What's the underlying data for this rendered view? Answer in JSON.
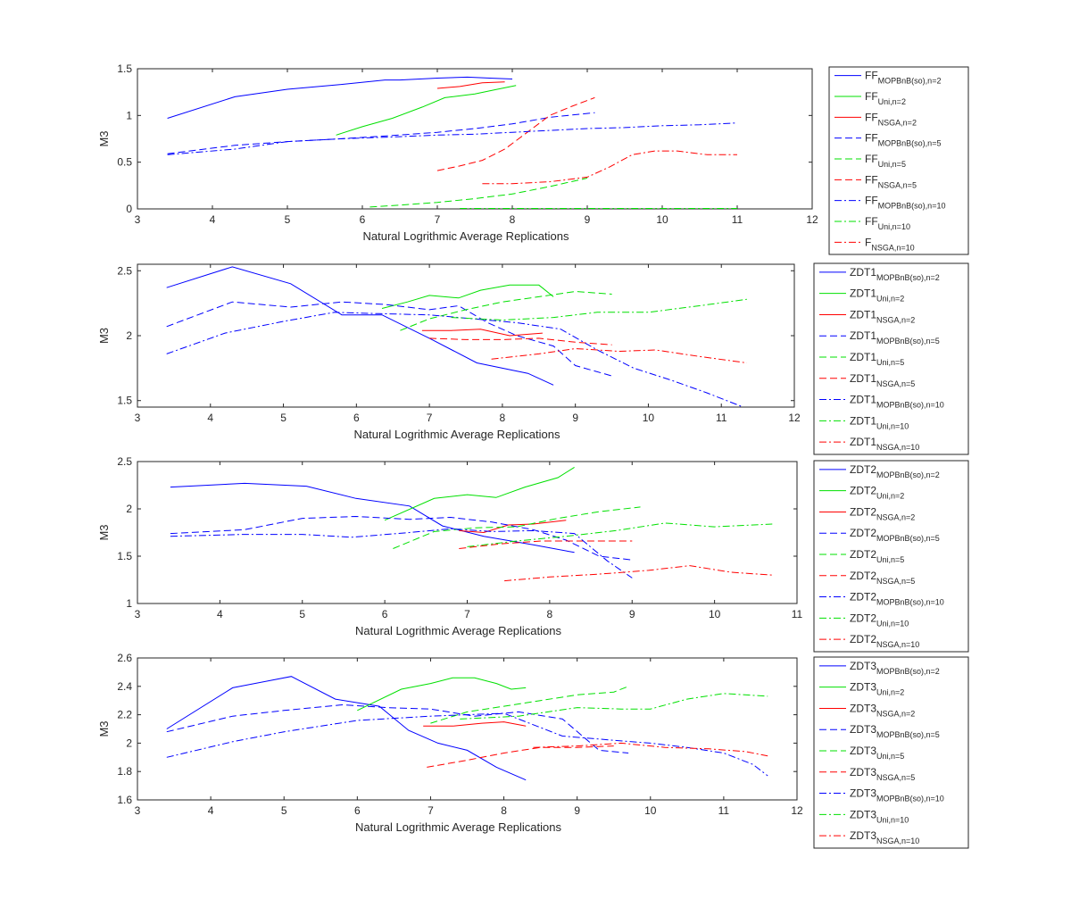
{
  "colors": {
    "blue": "#0000ff",
    "green": "#00e000",
    "red": "#ff0000",
    "axis": "#262626",
    "legend_border": "#262626"
  },
  "chart_data": [
    {
      "type": "line",
      "title": "",
      "xlabel": "Natural Logrithmic Average Replications",
      "ylabel": "M3",
      "xlim": [
        3,
        12
      ],
      "ylim": [
        0,
        1.5
      ],
      "xticks": [
        "3",
        "4",
        "5",
        "6",
        "7",
        "8",
        "9",
        "10",
        "11",
        "12"
      ],
      "yticks": [
        "0",
        "0.5",
        "1",
        "1.5"
      ],
      "legend_position": "outside-right",
      "series": [
        {
          "name": "FF",
          "sub": "MOPBnB(so),n=2",
          "color": "blue",
          "dash": "solid",
          "x": [
            3.4,
            4.3,
            5.0,
            5.7,
            6.3,
            6.5,
            7.0,
            7.4,
            7.7,
            8.0
          ],
          "y": [
            0.97,
            1.2,
            1.28,
            1.33,
            1.38,
            1.38,
            1.4,
            1.41,
            1.4,
            1.39
          ]
        },
        {
          "name": "FF",
          "sub": "Uni,n=2",
          "color": "green",
          "dash": "solid",
          "x": [
            5.65,
            6.0,
            6.4,
            6.8,
            7.1,
            7.5,
            7.8,
            8.05
          ],
          "y": [
            0.79,
            0.88,
            0.97,
            1.09,
            1.19,
            1.23,
            1.28,
            1.32
          ]
        },
        {
          "name": "FF",
          "sub": "NSGA,n=2",
          "color": "red",
          "dash": "solid",
          "x": [
            7.0,
            7.3,
            7.6,
            7.9
          ],
          "y": [
            1.29,
            1.31,
            1.35,
            1.36
          ]
        },
        {
          "name": "FF",
          "sub": "MOPBnB(so),n=5",
          "color": "blue",
          "dash": "dashed",
          "x": [
            3.4,
            4.3,
            5.0,
            5.7,
            6.3,
            7.0,
            7.5,
            8.0,
            8.5,
            9.1
          ],
          "y": [
            0.59,
            0.68,
            0.72,
            0.75,
            0.78,
            0.82,
            0.86,
            0.91,
            0.98,
            1.03
          ]
        },
        {
          "name": "FF",
          "sub": "Uni,n=5",
          "color": "green",
          "dash": "dashed",
          "x": [
            6.1,
            6.5,
            7.0,
            7.5,
            8.0,
            8.5,
            9.0
          ],
          "y": [
            0.02,
            0.04,
            0.07,
            0.11,
            0.16,
            0.24,
            0.33
          ]
        },
        {
          "name": "FF",
          "sub": "NSGA,n=5",
          "color": "red",
          "dash": "dashed",
          "x": [
            7.0,
            7.3,
            7.6,
            7.9,
            8.2,
            8.5,
            8.8,
            9.1
          ],
          "y": [
            0.41,
            0.46,
            0.52,
            0.64,
            0.82,
            1.0,
            1.1,
            1.19
          ]
        },
        {
          "name": "FF",
          "sub": "MOPBnB(so),n=10",
          "color": "blue",
          "dash": "dashdot",
          "x": [
            3.4,
            4.3,
            5.0,
            5.7,
            6.4,
            7.0,
            7.5,
            8.0,
            8.5,
            9.0,
            9.5,
            10.0,
            10.5,
            11.0
          ],
          "y": [
            0.58,
            0.64,
            0.72,
            0.75,
            0.77,
            0.79,
            0.8,
            0.82,
            0.84,
            0.86,
            0.87,
            0.89,
            0.9,
            0.92
          ]
        },
        {
          "name": "FF",
          "sub": "Uni,n=10",
          "color": "green",
          "dash": "dashdot",
          "x": [
            7.3,
            8.0,
            9.0,
            10.0,
            11.0
          ],
          "y": [
            0.005,
            0.005,
            0.005,
            0.005,
            0.005
          ]
        },
        {
          "name": "F",
          "sub": "NSGA,n=10",
          "color": "red",
          "dash": "dashdot",
          "x": [
            7.6,
            8.0,
            8.5,
            9.0,
            9.3,
            9.6,
            9.9,
            10.2,
            10.6,
            11.0
          ],
          "y": [
            0.27,
            0.27,
            0.29,
            0.34,
            0.45,
            0.58,
            0.62,
            0.62,
            0.58,
            0.58
          ]
        }
      ]
    },
    {
      "type": "line",
      "title": "",
      "xlabel": "Natural Logrithmic Average Replications",
      "ylabel": "M3",
      "xlim": [
        3,
        12
      ],
      "ylim": [
        1.45,
        2.55
      ],
      "xticks": [
        "3",
        "4",
        "5",
        "6",
        "7",
        "8",
        "9",
        "10",
        "11",
        "12"
      ],
      "yticks": [
        "1.5",
        "2",
        "2.5"
      ],
      "legend_position": "outside-right",
      "series": [
        {
          "name": "ZDT1",
          "sub": "MOPBnB(so),n=2",
          "color": "blue",
          "dash": "solid",
          "x": [
            3.4,
            4.3,
            5.1,
            5.8,
            6.35,
            7.0,
            7.65,
            8.35,
            8.7
          ],
          "y": [
            2.37,
            2.53,
            2.4,
            2.16,
            2.16,
            1.98,
            1.79,
            1.71,
            1.62
          ]
        },
        {
          "name": "ZDT1",
          "sub": "Uni,n=2",
          "color": "green",
          "dash": "solid",
          "x": [
            6.35,
            6.7,
            7.0,
            7.4,
            7.7,
            8.1,
            8.5,
            8.7
          ],
          "y": [
            2.21,
            2.26,
            2.31,
            2.29,
            2.35,
            2.39,
            2.39,
            2.3
          ]
        },
        {
          "name": "ZDT1",
          "sub": "NSGA,n=2",
          "color": "red",
          "dash": "solid",
          "x": [
            6.9,
            7.3,
            7.7,
            8.1,
            8.55
          ],
          "y": [
            2.04,
            2.04,
            2.05,
            2.0,
            2.02
          ]
        },
        {
          "name": "ZDT1",
          "sub": "MOPBnB(so),n=5",
          "color": "blue",
          "dash": "dashed",
          "x": [
            3.4,
            4.3,
            5.1,
            5.8,
            6.4,
            7.0,
            7.4,
            7.8,
            8.2,
            8.7,
            9.0,
            9.5
          ],
          "y": [
            2.07,
            2.26,
            2.22,
            2.26,
            2.24,
            2.2,
            2.23,
            2.1,
            2.0,
            1.92,
            1.77,
            1.69
          ]
        },
        {
          "name": "ZDT1",
          "sub": "Uni,n=5",
          "color": "green",
          "dash": "dashed",
          "x": [
            6.6,
            7.0,
            7.5,
            8.0,
            8.5,
            9.0,
            9.5
          ],
          "y": [
            2.04,
            2.13,
            2.2,
            2.26,
            2.3,
            2.34,
            2.32
          ]
        },
        {
          "name": "ZDT1",
          "sub": "NSGA,n=5",
          "color": "red",
          "dash": "dashed",
          "x": [
            7.0,
            7.5,
            8.0,
            8.5,
            9.0,
            9.5
          ],
          "y": [
            1.98,
            1.97,
            1.97,
            1.98,
            1.95,
            1.93
          ]
        },
        {
          "name": "ZDT1",
          "sub": "MOPBnB(so),n=10",
          "color": "blue",
          "dash": "dashdot",
          "x": [
            3.4,
            4.2,
            5.0,
            5.7,
            6.3,
            7.0,
            7.6,
            8.2,
            8.8,
            9.3,
            9.8,
            10.3,
            10.8,
            11.3
          ],
          "y": [
            1.86,
            2.02,
            2.11,
            2.18,
            2.17,
            2.16,
            2.13,
            2.1,
            2.05,
            1.89,
            1.75,
            1.66,
            1.56,
            1.45
          ]
        },
        {
          "name": "ZDT1",
          "sub": "Uni,n=10",
          "color": "green",
          "dash": "dashdot",
          "x": [
            7.3,
            8.0,
            8.7,
            9.3,
            10.0,
            10.7,
            11.35
          ],
          "y": [
            2.14,
            2.12,
            2.14,
            2.18,
            2.18,
            2.23,
            2.28
          ]
        },
        {
          "name": "ZDT1",
          "sub": "NSGA,n=10",
          "color": "red",
          "dash": "dashdot",
          "x": [
            7.85,
            8.5,
            9.0,
            9.6,
            10.1,
            10.7,
            11.35
          ],
          "y": [
            1.82,
            1.86,
            1.9,
            1.88,
            1.89,
            1.84,
            1.79
          ]
        }
      ]
    },
    {
      "type": "line",
      "title": "",
      "xlabel": "Natural Logrithmic Average Replications",
      "ylabel": "M3",
      "xlim": [
        3,
        11
      ],
      "ylim": [
        1,
        2.5
      ],
      "xticks": [
        "3",
        "4",
        "5",
        "6",
        "7",
        "8",
        "9",
        "10",
        "11"
      ],
      "yticks": [
        "1",
        "1.5",
        "2",
        "2.5"
      ],
      "legend_position": "outside-right",
      "series": [
        {
          "name": "ZDT2",
          "sub": "MOPBnB(so),n=2",
          "color": "blue",
          "dash": "solid",
          "x": [
            3.4,
            4.3,
            5.05,
            5.65,
            6.3,
            6.7,
            7.2,
            7.8,
            8.3
          ],
          "y": [
            2.23,
            2.27,
            2.24,
            2.11,
            2.03,
            1.82,
            1.71,
            1.62,
            1.54
          ]
        },
        {
          "name": "ZDT2",
          "sub": "Uni,n=2",
          "color": "green",
          "dash": "solid",
          "x": [
            6.0,
            6.6,
            7.0,
            7.35,
            7.7,
            8.1,
            8.3
          ],
          "y": [
            1.88,
            2.11,
            2.15,
            2.12,
            2.23,
            2.33,
            2.44
          ]
        },
        {
          "name": "ZDT2",
          "sub": "NSGA,n=2",
          "color": "red",
          "dash": "solid",
          "x": [
            6.9,
            7.2,
            7.5,
            7.8,
            8.2
          ],
          "y": [
            1.77,
            1.75,
            1.83,
            1.84,
            1.88
          ]
        },
        {
          "name": "ZDT2",
          "sub": "MOPBnB(so),n=5",
          "color": "blue",
          "dash": "dashed",
          "x": [
            3.4,
            4.3,
            5.0,
            5.65,
            6.3,
            6.8,
            7.3,
            7.8,
            8.2,
            8.6,
            9.0
          ],
          "y": [
            1.74,
            1.78,
            1.9,
            1.92,
            1.89,
            1.91,
            1.86,
            1.78,
            1.67,
            1.5,
            1.46
          ]
        },
        {
          "name": "ZDT2",
          "sub": "Uni,n=5",
          "color": "green",
          "dash": "dashed",
          "x": [
            6.1,
            6.6,
            7.1,
            7.6,
            8.1,
            8.6,
            9.1
          ],
          "y": [
            1.58,
            1.76,
            1.8,
            1.81,
            1.9,
            1.97,
            2.02
          ]
        },
        {
          "name": "ZDT2",
          "sub": "NSGA,n=5",
          "color": "red",
          "dash": "dashed",
          "x": [
            6.9,
            7.4,
            7.9,
            8.4,
            9.0
          ],
          "y": [
            1.58,
            1.63,
            1.66,
            1.66,
            1.66
          ]
        },
        {
          "name": "ZDT2",
          "sub": "MOPBnB(so),n=10",
          "color": "blue",
          "dash": "dashdot",
          "x": [
            3.4,
            4.3,
            5.0,
            5.6,
            6.3,
            6.8,
            7.3,
            7.8,
            8.3,
            8.7,
            9.0
          ],
          "y": [
            1.71,
            1.73,
            1.73,
            1.7,
            1.75,
            1.79,
            1.76,
            1.77,
            1.74,
            1.45,
            1.27
          ]
        },
        {
          "name": "ZDT2",
          "sub": "Uni,n=10",
          "color": "green",
          "dash": "dashdot",
          "x": [
            7.0,
            7.6,
            8.2,
            8.8,
            9.4,
            10.0,
            10.7
          ],
          "y": [
            1.6,
            1.66,
            1.71,
            1.77,
            1.85,
            1.81,
            1.84
          ]
        },
        {
          "name": "ZDT2",
          "sub": "NSGA,n=10",
          "color": "red",
          "dash": "dashdot",
          "x": [
            7.45,
            8.0,
            8.6,
            9.2,
            9.7,
            10.2,
            10.7
          ],
          "y": [
            1.24,
            1.28,
            1.31,
            1.35,
            1.4,
            1.33,
            1.3
          ]
        }
      ]
    },
    {
      "type": "line",
      "title": "",
      "xlabel": "Natural Logrithmic Average Replications",
      "ylabel": "M3",
      "xlim": [
        3,
        12
      ],
      "ylim": [
        1.6,
        2.6
      ],
      "xticks": [
        "3",
        "4",
        "5",
        "6",
        "7",
        "8",
        "9",
        "10",
        "11",
        "12"
      ],
      "yticks": [
        "1.6",
        "1.8",
        "2",
        "2.2",
        "2.4",
        "2.6"
      ],
      "legend_position": "outside-right",
      "series": [
        {
          "name": "ZDT3",
          "sub": "MOPBnB(so),n=2",
          "color": "blue",
          "dash": "solid",
          "x": [
            3.4,
            4.3,
            5.1,
            5.7,
            6.3,
            6.7,
            7.1,
            7.5,
            7.9,
            8.3
          ],
          "y": [
            2.1,
            2.39,
            2.47,
            2.31,
            2.26,
            2.09,
            2.0,
            1.95,
            1.83,
            1.74
          ]
        },
        {
          "name": "ZDT3",
          "sub": "Uni,n=2",
          "color": "green",
          "dash": "solid",
          "x": [
            6.0,
            6.6,
            7.0,
            7.3,
            7.6,
            7.9,
            8.1,
            8.3
          ],
          "y": [
            2.23,
            2.38,
            2.42,
            2.46,
            2.46,
            2.42,
            2.38,
            2.39
          ]
        },
        {
          "name": "ZDT3",
          "sub": "NSGA,n=2",
          "color": "red",
          "dash": "solid",
          "x": [
            6.9,
            7.3,
            7.7,
            8.0,
            8.3
          ],
          "y": [
            2.12,
            2.12,
            2.14,
            2.15,
            2.12
          ]
        },
        {
          "name": "ZDT3",
          "sub": "MOPBnB(so),n=5",
          "color": "blue",
          "dash": "dashed",
          "x": [
            3.4,
            4.3,
            5.0,
            5.8,
            6.4,
            7.0,
            7.6,
            8.2,
            8.8,
            9.3,
            9.7
          ],
          "y": [
            2.08,
            2.19,
            2.23,
            2.27,
            2.25,
            2.24,
            2.19,
            2.22,
            2.17,
            1.95,
            1.93
          ]
        },
        {
          "name": "ZDT3",
          "sub": "Uni,n=5",
          "color": "green",
          "dash": "dashed",
          "x": [
            7.0,
            7.5,
            8.0,
            8.5,
            9.0,
            9.5,
            9.7
          ],
          "y": [
            2.14,
            2.22,
            2.26,
            2.3,
            2.34,
            2.36,
            2.4
          ]
        },
        {
          "name": "ZDT3",
          "sub": "NSGA,n=5",
          "color": "red",
          "dash": "dashed",
          "x": [
            6.95,
            7.5,
            8.0,
            8.5,
            9.0,
            9.5
          ],
          "y": [
            1.83,
            1.88,
            1.93,
            1.97,
            1.97,
            1.98
          ]
        },
        {
          "name": "ZDT3",
          "sub": "MOPBnB(so),n=10",
          "color": "blue",
          "dash": "dashdot",
          "x": [
            3.4,
            4.3,
            5.0,
            6.0,
            7.0,
            8.0,
            8.8,
            9.5,
            10.0,
            10.5,
            11.0,
            11.4,
            11.6
          ],
          "y": [
            1.9,
            2.01,
            2.08,
            2.16,
            2.19,
            2.21,
            2.05,
            2.02,
            2.0,
            1.97,
            1.93,
            1.85,
            1.77
          ]
        },
        {
          "name": "ZDT3",
          "sub": "Uni,n=10",
          "color": "green",
          "dash": "dashdot",
          "x": [
            7.4,
            8.2,
            9.0,
            9.6,
            10.0,
            10.5,
            11.0,
            11.6
          ],
          "y": [
            2.17,
            2.19,
            2.25,
            2.24,
            2.24,
            2.31,
            2.35,
            2.33
          ]
        },
        {
          "name": "ZDT3",
          "sub": "NSGA,n=10",
          "color": "red",
          "dash": "dashdot",
          "x": [
            8.4,
            9.0,
            9.6,
            10.2,
            10.8,
            11.3,
            11.6
          ],
          "y": [
            1.97,
            1.98,
            2.0,
            1.97,
            1.96,
            1.94,
            1.91
          ]
        }
      ]
    }
  ]
}
